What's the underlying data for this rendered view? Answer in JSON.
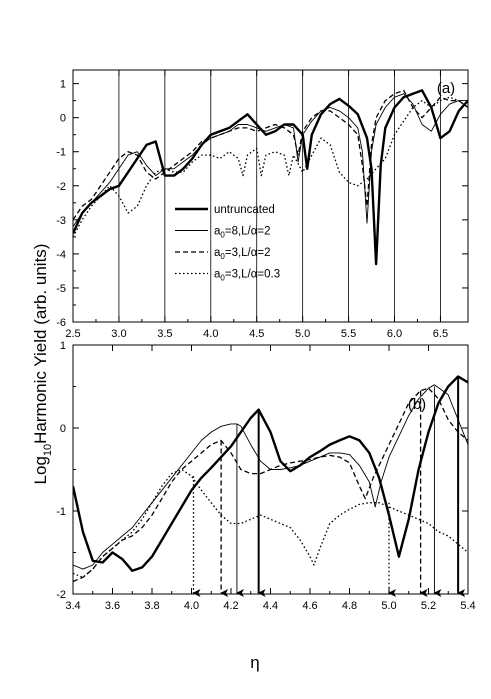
{
  "figure": {
    "ylabel_prefix": "Log",
    "ylabel_sub": "10",
    "ylabel_rest": "Harmonic Yield (arb. units)",
    "xlabel": "η"
  },
  "chart_data": [
    {
      "type": "line",
      "panel_label": "(a)",
      "xlim": [
        2.5,
        6.8
      ],
      "ylim": [
        -6,
        1.4
      ],
      "xticks": [
        "2.5",
        "3.0",
        "3.5",
        "4.0",
        "4.5",
        "5.0",
        "5.5",
        "6.0",
        "6.5"
      ],
      "yticks": [
        "1",
        "0",
        "-1",
        "-2",
        "-3",
        "-4",
        "-5",
        "-6"
      ],
      "vertical_lines_x": [
        3.0,
        3.5,
        4.0,
        4.5,
        5.0,
        5.5,
        6.0,
        6.5
      ],
      "legend": {
        "placement": "center",
        "entries": [
          {
            "style": "thick-solid",
            "text": "untruncated"
          },
          {
            "style": "thin-solid",
            "sym": "a",
            "sub": "0",
            "rest": "=8,L/α=2"
          },
          {
            "style": "dashed",
            "sym": "a",
            "sub": "0",
            "rest": "=3,L/α=2"
          },
          {
            "style": "dotted",
            "sym": "a",
            "sub": "0",
            "rest": "=3,L/α=0.3"
          }
        ]
      },
      "series": [
        {
          "style": "thick-solid",
          "x": [
            2.5,
            2.6,
            2.7,
            2.8,
            2.9,
            3.0,
            3.1,
            3.2,
            3.3,
            3.4,
            3.5,
            3.6,
            3.7,
            3.8,
            3.9,
            4.0,
            4.1,
            4.2,
            4.3,
            4.4,
            4.5,
            4.6,
            4.7,
            4.8,
            4.9,
            5.0,
            5.05,
            5.1,
            5.2,
            5.3,
            5.4,
            5.5,
            5.6,
            5.7,
            5.75,
            5.8,
            5.85,
            5.9,
            6.0,
            6.1,
            6.2,
            6.3,
            6.4,
            6.5,
            6.6,
            6.7,
            6.8
          ],
          "y": [
            -3.4,
            -2.8,
            -2.5,
            -2.3,
            -2.1,
            -2.0,
            -1.6,
            -1.2,
            -0.8,
            -0.7,
            -1.7,
            -1.7,
            -1.5,
            -1.2,
            -0.8,
            -0.5,
            -0.4,
            -0.3,
            -0.1,
            0.1,
            -0.2,
            -0.5,
            -0.4,
            -0.2,
            -0.2,
            -0.5,
            -1.5,
            -0.5,
            0.1,
            0.4,
            0.55,
            0.35,
            0.1,
            -0.6,
            -1.5,
            -4.3,
            -1.4,
            -0.3,
            0.3,
            0.6,
            0.7,
            0.8,
            0.3,
            -0.6,
            -0.4,
            0.2,
            0.5
          ]
        },
        {
          "style": "thin-solid",
          "x": [
            2.5,
            2.6,
            2.7,
            2.8,
            2.9,
            3.0,
            3.1,
            3.2,
            3.3,
            3.4,
            3.5,
            3.6,
            3.7,
            3.8,
            3.9,
            4.0,
            4.1,
            4.2,
            4.3,
            4.4,
            4.5,
            4.6,
            4.7,
            4.8,
            4.9,
            4.95,
            5.0,
            5.1,
            5.2,
            5.3,
            5.4,
            5.5,
            5.6,
            5.65,
            5.7,
            5.75,
            5.8,
            5.9,
            6.0,
            6.1,
            6.2,
            6.3,
            6.4,
            6.5,
            6.6,
            6.7,
            6.8
          ],
          "y": [
            -3.2,
            -2.8,
            -2.5,
            -2.2,
            -1.9,
            -1.5,
            -1.1,
            -1.0,
            -1.4,
            -1.7,
            -1.5,
            -1.5,
            -1.3,
            -1.1,
            -0.8,
            -0.6,
            -0.5,
            -0.4,
            -0.2,
            -0.2,
            -0.3,
            -0.4,
            -0.3,
            -0.2,
            -0.3,
            -1.3,
            -0.5,
            -0.1,
            0.2,
            0.3,
            0.2,
            0.0,
            -0.3,
            -1.0,
            -3.1,
            -1.0,
            -0.2,
            0.3,
            0.6,
            0.7,
            0.4,
            -0.2,
            -0.4,
            0.1,
            0.4,
            0.5,
            0.5
          ]
        },
        {
          "style": "dashed",
          "x": [
            2.5,
            2.6,
            2.7,
            2.8,
            2.9,
            3.0,
            3.1,
            3.2,
            3.3,
            3.4,
            3.5,
            3.6,
            3.7,
            3.8,
            3.9,
            4.0,
            4.1,
            4.2,
            4.3,
            4.4,
            4.5,
            4.6,
            4.7,
            4.8,
            4.9,
            4.95,
            5.0,
            5.1,
            5.2,
            5.3,
            5.4,
            5.5,
            5.6,
            5.65,
            5.7,
            5.75,
            5.8,
            5.9,
            6.0,
            6.1,
            6.2,
            6.3,
            6.4,
            6.5,
            6.6,
            6.7,
            6.8
          ],
          "y": [
            -3.0,
            -2.6,
            -2.4,
            -2.0,
            -1.6,
            -1.2,
            -1.0,
            -1.1,
            -1.6,
            -1.8,
            -1.6,
            -1.4,
            -1.2,
            -1.0,
            -0.7,
            -0.6,
            -0.5,
            -0.4,
            -0.3,
            -0.3,
            -0.4,
            -0.3,
            -0.2,
            -0.3,
            -0.5,
            -1.1,
            -0.4,
            0.0,
            0.2,
            0.2,
            0.0,
            -0.2,
            -0.5,
            -1.4,
            -2.6,
            -0.8,
            0.0,
            0.5,
            0.7,
            0.8,
            0.3,
            0.0,
            0.3,
            0.6,
            0.5,
            0.5,
            0.3
          ]
        },
        {
          "style": "dotted",
          "x": [
            2.5,
            2.6,
            2.7,
            2.8,
            2.9,
            3.0,
            3.1,
            3.2,
            3.3,
            3.4,
            3.5,
            3.6,
            3.7,
            3.8,
            3.9,
            4.0,
            4.1,
            4.2,
            4.3,
            4.35,
            4.4,
            4.5,
            4.55,
            4.6,
            4.7,
            4.8,
            4.85,
            4.9,
            5.0,
            5.1,
            5.2,
            5.3,
            5.4,
            5.5,
            5.6,
            5.7,
            5.8,
            5.9,
            6.0,
            6.1,
            6.2,
            6.3,
            6.4,
            6.5,
            6.6,
            6.7,
            6.8
          ],
          "y": [
            -3.5,
            -3.0,
            -2.6,
            -2.3,
            -2.0,
            -2.3,
            -2.8,
            -2.6,
            -2.0,
            -1.6,
            -1.5,
            -1.6,
            -1.6,
            -1.3,
            -1.1,
            -1.1,
            -1.2,
            -1.0,
            -1.2,
            -1.7,
            -1.1,
            -0.9,
            -1.7,
            -1.1,
            -1.0,
            -1.1,
            -1.7,
            -1.1,
            -1.6,
            -1.1,
            -0.6,
            -0.8,
            -1.6,
            -1.9,
            -2.0,
            -1.8,
            -1.5,
            -1.2,
            -0.5,
            -0.1,
            0.3,
            0.5,
            0.3,
            0.5,
            0.6,
            0.5,
            0.3
          ]
        }
      ]
    },
    {
      "type": "line",
      "panel_label": "(b)",
      "xlim": [
        3.4,
        5.4
      ],
      "ylim": [
        -2,
        1
      ],
      "xticks": [
        "3.4",
        "3.6",
        "3.8",
        "4.0",
        "4.2",
        "4.4",
        "4.6",
        "4.8",
        "5.0",
        "5.2",
        "5.4"
      ],
      "yticks": [
        "1",
        "0",
        "-1",
        "-2"
      ],
      "arrows": [
        {
          "x": 4.01,
          "style": "dotted",
          "y_top": -0.58
        },
        {
          "x": 4.15,
          "style": "dashed",
          "y_top": -0.15
        },
        {
          "x": 4.23,
          "style": "thin-solid",
          "y_top": 0.05
        },
        {
          "x": 4.34,
          "style": "thick-solid",
          "y_top": 0.22
        },
        {
          "x": 5.0,
          "style": "dotted",
          "y_top": -0.9
        },
        {
          "x": 5.16,
          "style": "dashed",
          "y_top": 0.45
        },
        {
          "x": 5.23,
          "style": "thin-solid",
          "y_top": 0.5
        },
        {
          "x": 5.35,
          "style": "thick-solid",
          "y_top": 0.6
        }
      ],
      "series": [
        {
          "style": "thick-solid",
          "x": [
            3.4,
            3.45,
            3.5,
            3.55,
            3.6,
            3.65,
            3.7,
            3.75,
            3.8,
            3.85,
            3.9,
            3.95,
            4.0,
            4.05,
            4.1,
            4.15,
            4.2,
            4.25,
            4.3,
            4.34,
            4.4,
            4.45,
            4.5,
            4.55,
            4.6,
            4.65,
            4.7,
            4.75,
            4.8,
            4.85,
            4.9,
            4.95,
            5.0,
            5.05,
            5.1,
            5.15,
            5.2,
            5.25,
            5.3,
            5.35,
            5.4
          ],
          "y": [
            -0.7,
            -1.25,
            -1.6,
            -1.62,
            -1.5,
            -1.58,
            -1.72,
            -1.68,
            -1.55,
            -1.35,
            -1.15,
            -0.95,
            -0.75,
            -0.6,
            -0.48,
            -0.35,
            -0.22,
            -0.05,
            0.12,
            0.22,
            -0.05,
            -0.4,
            -0.52,
            -0.45,
            -0.35,
            -0.28,
            -0.2,
            -0.15,
            -0.1,
            -0.15,
            -0.3,
            -0.6,
            -1.05,
            -1.55,
            -1.1,
            -0.5,
            -0.05,
            0.3,
            0.5,
            0.62,
            0.55
          ]
        },
        {
          "style": "thin-solid",
          "x": [
            3.4,
            3.45,
            3.5,
            3.55,
            3.6,
            3.65,
            3.7,
            3.75,
            3.8,
            3.85,
            3.9,
            3.95,
            4.0,
            4.05,
            4.1,
            4.15,
            4.2,
            4.23,
            4.25,
            4.3,
            4.35,
            4.4,
            4.45,
            4.5,
            4.55,
            4.6,
            4.65,
            4.7,
            4.75,
            4.8,
            4.85,
            4.9,
            4.93,
            4.96,
            5.0,
            5.05,
            5.1,
            5.15,
            5.2,
            5.23,
            5.3,
            5.35,
            5.4
          ],
          "y": [
            -1.65,
            -1.7,
            -1.65,
            -1.5,
            -1.4,
            -1.3,
            -1.2,
            -1.05,
            -0.9,
            -0.75,
            -0.6,
            -0.45,
            -0.3,
            -0.15,
            -0.05,
            0.02,
            0.05,
            0.05,
            0.02,
            -0.2,
            -0.4,
            -0.5,
            -0.5,
            -0.48,
            -0.45,
            -0.4,
            -0.35,
            -0.3,
            -0.3,
            -0.32,
            -0.45,
            -0.65,
            -0.95,
            -0.65,
            -0.35,
            -0.1,
            0.15,
            0.35,
            0.48,
            0.52,
            0.4,
            0.1,
            -0.2
          ]
        },
        {
          "style": "dashed",
          "x": [
            3.4,
            3.45,
            3.5,
            3.55,
            3.6,
            3.65,
            3.7,
            3.75,
            3.8,
            3.85,
            3.9,
            3.95,
            4.0,
            4.05,
            4.1,
            4.15,
            4.2,
            4.25,
            4.3,
            4.35,
            4.4,
            4.45,
            4.5,
            4.55,
            4.6,
            4.65,
            4.7,
            4.75,
            4.8,
            4.85,
            4.88,
            4.92,
            4.95,
            5.0,
            5.05,
            5.1,
            5.16,
            5.2,
            5.25,
            5.3,
            5.35,
            5.4
          ],
          "y": [
            -1.85,
            -1.8,
            -1.7,
            -1.55,
            -1.45,
            -1.35,
            -1.3,
            -1.2,
            -1.05,
            -0.85,
            -0.65,
            -0.5,
            -0.4,
            -0.3,
            -0.2,
            -0.15,
            -0.3,
            -0.5,
            -0.55,
            -0.55,
            -0.5,
            -0.45,
            -0.42,
            -0.4,
            -0.38,
            -0.35,
            -0.33,
            -0.35,
            -0.42,
            -0.7,
            -0.85,
            -0.6,
            -0.45,
            -0.2,
            0.05,
            0.3,
            0.45,
            0.48,
            0.35,
            0.1,
            -0.05,
            -0.15
          ]
        },
        {
          "style": "dotted",
          "x": [
            3.4,
            3.45,
            3.5,
            3.55,
            3.6,
            3.65,
            3.7,
            3.75,
            3.8,
            3.85,
            3.9,
            3.95,
            4.0,
            4.05,
            4.1,
            4.15,
            4.2,
            4.25,
            4.3,
            4.35,
            4.4,
            4.45,
            4.5,
            4.55,
            4.6,
            4.62,
            4.65,
            4.7,
            4.75,
            4.8,
            4.85,
            4.9,
            4.95,
            5.0,
            5.05,
            5.1,
            5.15,
            5.2,
            5.25,
            5.3,
            5.35,
            5.4
          ],
          "y": [
            -1.75,
            -1.8,
            -1.7,
            -1.55,
            -1.45,
            -1.35,
            -1.25,
            -1.1,
            -0.9,
            -0.7,
            -0.55,
            -0.5,
            -0.58,
            -0.75,
            -0.9,
            -1.05,
            -1.15,
            -1.15,
            -1.1,
            -1.05,
            -1.1,
            -1.15,
            -1.2,
            -1.35,
            -1.55,
            -1.65,
            -1.45,
            -1.15,
            -1.05,
            -0.98,
            -0.92,
            -0.9,
            -0.9,
            -0.95,
            -1.0,
            -1.05,
            -1.1,
            -1.15,
            -1.25,
            -1.3,
            -1.4,
            -1.5
          ]
        }
      ]
    }
  ]
}
